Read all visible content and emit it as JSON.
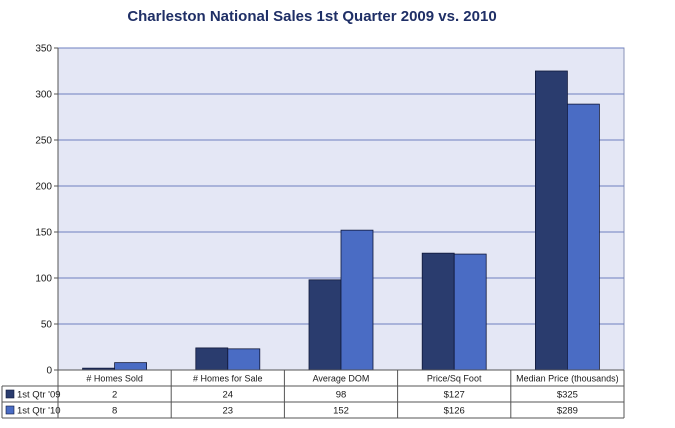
{
  "chart_data": {
    "type": "bar",
    "title": "Charleston National Sales 1st Quarter 2009 vs. 2010",
    "categories": [
      "# Homes Sold",
      "# Homes for Sale",
      "Average DOM",
      "Price/Sq Foot",
      "Median Price (thousands)"
    ],
    "series": [
      {
        "name": "1st Qtr '09",
        "values": [
          2,
          24,
          98,
          127,
          325
        ],
        "labels": [
          "2",
          "24",
          "98",
          "$127",
          "$325"
        ],
        "color": "#2a3c6e"
      },
      {
        "name": "1st Qtr '10",
        "values": [
          8,
          23,
          152,
          126,
          289
        ],
        "labels": [
          "8",
          "23",
          "152",
          "$126",
          "$289"
        ],
        "color": "#4a6cc4"
      }
    ],
    "ylim": [
      0,
      350
    ],
    "yticks": [
      "0",
      "50",
      "100",
      "150",
      "200",
      "250",
      "300",
      "350"
    ],
    "grid": true,
    "legend": "data-table",
    "plot_background": "#e4e7f5",
    "gridline_color": "#6e7fc0"
  }
}
